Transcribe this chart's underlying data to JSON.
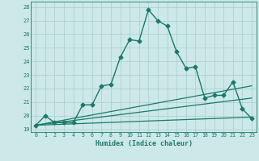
{
  "title": "",
  "xlabel": "Humidex (Indice chaleur)",
  "xlim": [
    -0.5,
    23.5
  ],
  "ylim": [
    18.8,
    28.4
  ],
  "yticks": [
    19,
    20,
    21,
    22,
    23,
    24,
    25,
    26,
    27,
    28
  ],
  "xticks": [
    0,
    1,
    2,
    3,
    4,
    5,
    6,
    7,
    8,
    9,
    10,
    11,
    12,
    13,
    14,
    15,
    16,
    17,
    18,
    19,
    20,
    21,
    22,
    23
  ],
  "background_color": "#cce8e8",
  "grid_color": "#aacccc",
  "line_color": "#1a7a6a",
  "lines": [
    {
      "x": [
        0,
        1,
        2,
        3,
        4,
        5,
        6,
        7,
        8,
        9,
        10,
        11,
        12,
        13,
        14,
        15,
        16,
        17,
        18,
        19,
        20,
        21,
        22,
        23
      ],
      "y": [
        19.3,
        20.0,
        19.5,
        19.5,
        19.5,
        20.8,
        20.8,
        22.2,
        22.3,
        24.3,
        25.6,
        25.5,
        27.8,
        27.0,
        26.6,
        24.7,
        23.5,
        23.6,
        21.3,
        21.5,
        21.5,
        22.5,
        20.5,
        19.8
      ],
      "marker": "D",
      "markersize": 2.5,
      "linewidth": 1.0,
      "has_marker": true
    },
    {
      "x": [
        0,
        23
      ],
      "y": [
        19.3,
        19.9
      ],
      "marker": null,
      "markersize": 0,
      "linewidth": 0.9,
      "has_marker": false
    },
    {
      "x": [
        0,
        23
      ],
      "y": [
        19.3,
        21.3
      ],
      "marker": null,
      "markersize": 0,
      "linewidth": 0.9,
      "has_marker": false
    },
    {
      "x": [
        0,
        23
      ],
      "y": [
        19.3,
        22.2
      ],
      "marker": null,
      "markersize": 0,
      "linewidth": 0.9,
      "has_marker": false
    }
  ]
}
